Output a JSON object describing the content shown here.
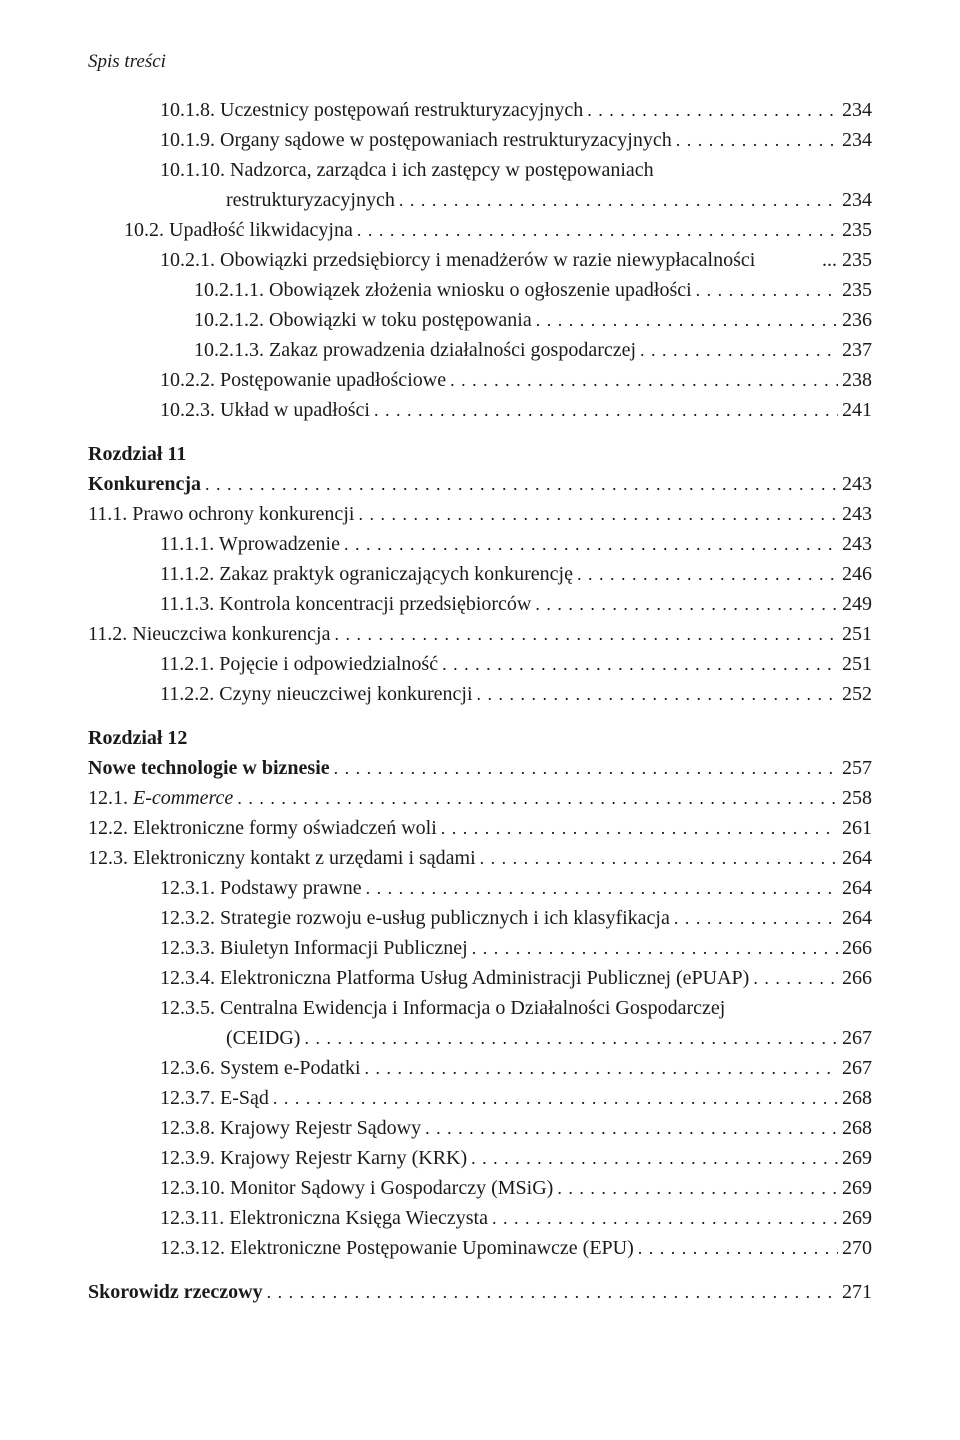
{
  "header": "Spis treści",
  "entries": [
    {
      "indent": "ind1",
      "label": "10.1.8.  Uczestnicy postępowań restrukturyzacyjnych",
      "page": "234"
    },
    {
      "indent": "ind1",
      "label": "10.1.9.  Organy sądowe w postępowaniach restrukturyzacyjnych",
      "page": "234"
    },
    {
      "indent": "ind1",
      "label": "10.1.10. Nadzorca, zarządca i ich zastępcy w postępowaniach",
      "page": ""
    },
    {
      "indent": "ind3",
      "label": "restrukturyzacyjnych",
      "page": "234"
    },
    {
      "indent": "ind0",
      "label": "10.2.  Upadłość likwidacyjna",
      "page": "235"
    },
    {
      "indent": "ind1",
      "label": "10.2.1.  Obowiązki przedsiębiorcy i menadżerów w razie niewypłacalności",
      "page": "235",
      "nodots": true
    },
    {
      "indent": "ind2",
      "label": "10.2.1.1.  Obowiązek złożenia wniosku o ogłoszenie upadłości",
      "page": "235"
    },
    {
      "indent": "ind2",
      "label": "10.2.1.2.  Obowiązki w toku postępowania",
      "page": "236"
    },
    {
      "indent": "ind2",
      "label": "10.2.1.3.  Zakaz prowadzenia działalności gospodarczej",
      "page": "237"
    },
    {
      "indent": "ind1",
      "label": "10.2.2.  Postępowanie upadłościowe",
      "page": "238"
    },
    {
      "indent": "ind1",
      "label": "10.2.3.  Układ w upadłości",
      "page": "241"
    },
    {
      "gap": true
    },
    {
      "indent": "ind-ch",
      "label": "Rozdział 11",
      "page": "",
      "bold": true,
      "nopage": true
    },
    {
      "indent": "ind-ch",
      "label": "Konkurencja",
      "page": "243",
      "bold": true
    },
    {
      "indent": "ind-ch",
      "label": "11.1.  Prawo ochrony konkurencji",
      "page": "243"
    },
    {
      "indent": "ind1",
      "label": "11.1.1.  Wprowadzenie",
      "page": "243"
    },
    {
      "indent": "ind1",
      "label": "11.1.2.  Zakaz praktyk ograniczających konkurencję",
      "page": "246"
    },
    {
      "indent": "ind1",
      "label": "11.1.3.  Kontrola koncentracji przedsiębiorców",
      "page": "249"
    },
    {
      "indent": "ind-ch",
      "label": "11.2.  Nieuczciwa konkurencja",
      "page": "251"
    },
    {
      "indent": "ind1",
      "label": "11.2.1.  Pojęcie i odpowiedzialność",
      "page": "251"
    },
    {
      "indent": "ind1",
      "label": "11.2.2.  Czyny nieuczciwej konkurencji",
      "page": "252"
    },
    {
      "gap": true
    },
    {
      "indent": "ind-ch",
      "label": "Rozdział 12",
      "page": "",
      "bold": true,
      "nopage": true
    },
    {
      "indent": "ind-ch",
      "label": "Nowe technologie w biznesie",
      "page": "257",
      "bold": true
    },
    {
      "indent": "ind-ch",
      "label": "12.1.  ",
      "italicpart": "E-commerce",
      "page": "258"
    },
    {
      "indent": "ind-ch",
      "label": "12.2.  Elektroniczne formy oświadczeń woli",
      "page": "261"
    },
    {
      "indent": "ind-ch",
      "label": "12.3.  Elektroniczny kontakt z urzędami i sądami",
      "page": "264"
    },
    {
      "indent": "ind1",
      "label": "12.3.1.  Podstawy prawne",
      "page": "264"
    },
    {
      "indent": "ind1",
      "label": "12.3.2.  Strategie rozwoju e-usług publicznych i ich klasyfikacja",
      "page": "264"
    },
    {
      "indent": "ind1",
      "label": "12.3.3.  Biuletyn Informacji Publicznej",
      "page": "266"
    },
    {
      "indent": "ind1",
      "label": "12.3.4.  Elektroniczna Platforma Usług Administracji Publicznej (ePUAP)",
      "page": "266"
    },
    {
      "indent": "ind1",
      "label": "12.3.5.  Centralna Ewidencja i Informacja o Działalności Gospodarczej",
      "page": "",
      "nopage": true
    },
    {
      "indent": "ind3",
      "label": "(CEIDG)",
      "page": "267"
    },
    {
      "indent": "ind1",
      "label": "12.3.6.  System e-Podatki",
      "page": "267"
    },
    {
      "indent": "ind1",
      "label": "12.3.7.  E-Sąd",
      "page": "268"
    },
    {
      "indent": "ind1",
      "label": "12.3.8.  Krajowy Rejestr Sądowy",
      "page": "268"
    },
    {
      "indent": "ind1",
      "label": "12.3.9.  Krajowy Rejestr Karny (KRK)",
      "page": "269"
    },
    {
      "indent": "ind1",
      "label": "12.3.10. Monitor Sądowy i Gospodarczy (MSiG)",
      "page": "269"
    },
    {
      "indent": "ind1",
      "label": "12.3.11. Elektroniczna Księga Wieczysta",
      "page": "269"
    },
    {
      "indent": "ind1",
      "label": "12.3.12. Elektroniczne Postępowanie Upominawcze (EPU)",
      "page": "270"
    },
    {
      "gap": true
    },
    {
      "indent": "ind-ch",
      "label": "Skorowidz rzeczowy",
      "page": "271",
      "bold": true
    }
  ]
}
